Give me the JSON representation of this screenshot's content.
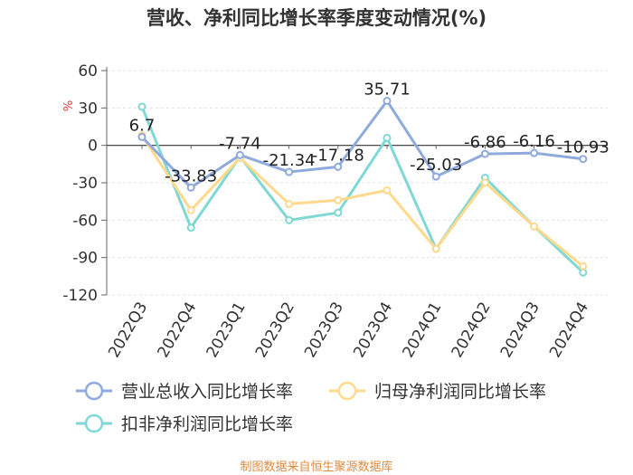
{
  "chart_data": {
    "type": "line",
    "title": "营收、净利同比增长率季度变动情况(%)",
    "ylabel": "%",
    "ylim": [
      -120,
      60
    ],
    "yticks": [
      60,
      30,
      0,
      -30,
      -60,
      -90,
      -120
    ],
    "categories": [
      "2022Q3",
      "2022Q4",
      "2023Q1",
      "2023Q2",
      "2023Q3",
      "2023Q4",
      "2024Q1",
      "2024Q2",
      "2024Q3",
      "2024Q4"
    ],
    "series": [
      {
        "name": "营业总收入同比增长率",
        "color": "#8faadc",
        "values": [
          6.7,
          -33.83,
          -7.74,
          -21.34,
          -17.18,
          35.71,
          -25.03,
          -6.86,
          -6.16,
          -10.93
        ],
        "labels": [
          "6.7",
          "-33.83",
          "-7.74",
          "-21.34",
          "-17.18",
          "35.71",
          "-25.03",
          "-6.86",
          "-6.16",
          "-10.93"
        ]
      },
      {
        "name": "归母净利润同比增长率",
        "color": "#ffd98c",
        "values": [
          8.0,
          -52.0,
          -10.0,
          -47.0,
          -44.0,
          -36.0,
          -83.0,
          -30.0,
          -65.0,
          -97.0
        ]
      },
      {
        "name": "扣非净利润同比增长率",
        "color": "#7fd8d4",
        "values": [
          31.0,
          -66.0,
          -9.0,
          -60.0,
          -54.0,
          6.0,
          -83.0,
          -26.0,
          -65.0,
          -102.0
        ]
      }
    ],
    "legend_position": "bottom",
    "source": "制图数据来自恒生聚源数据库"
  }
}
